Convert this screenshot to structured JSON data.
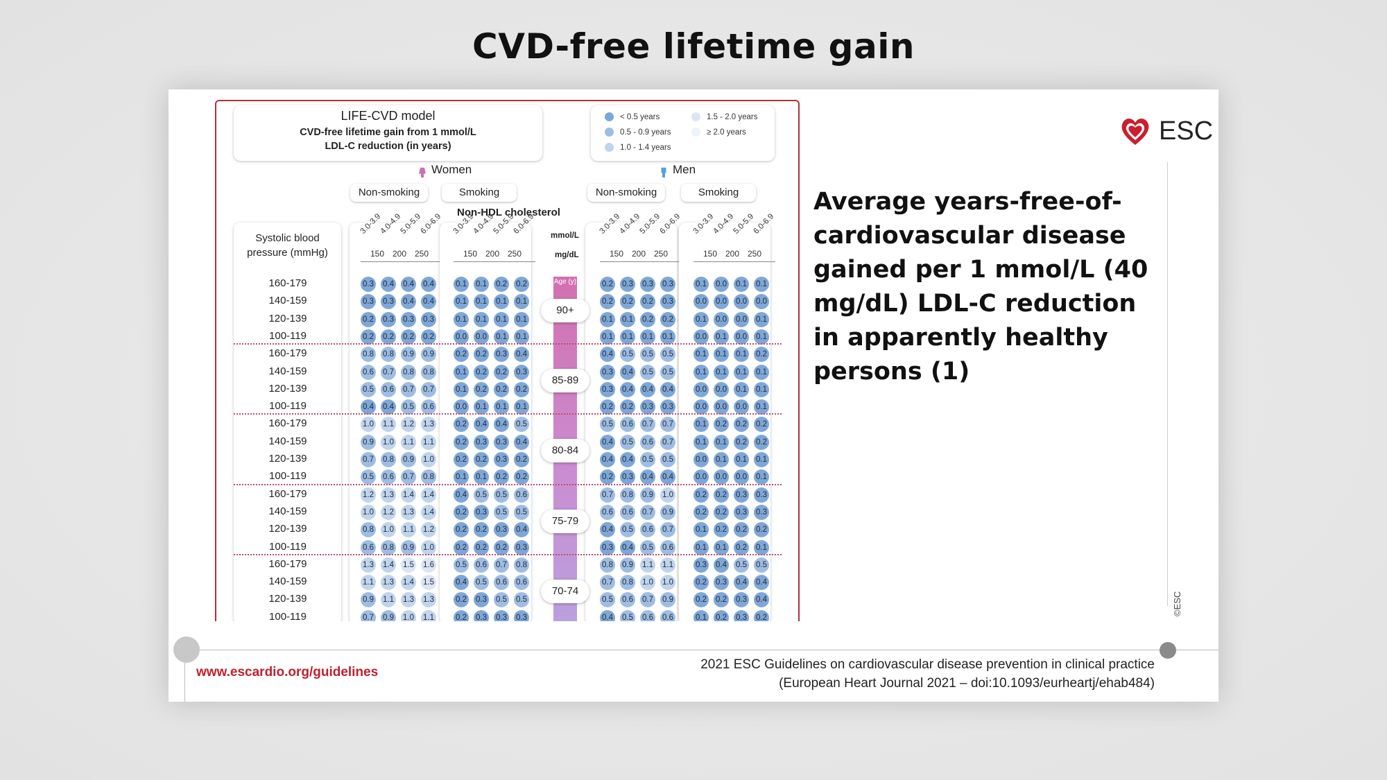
{
  "page_title": "CVD-free lifetime gain",
  "model": {
    "title": "LIFE-CVD model",
    "subtitle_line1": "CVD-free lifetime gain from 1 mmol/L",
    "subtitle_line2": "LDL-C reduction (in years)"
  },
  "legend": {
    "items": [
      {
        "label": "< 0.5 years",
        "color": "#7fa7d6"
      },
      {
        "label": "0.5 - 0.9 years",
        "color": "#9fbde2"
      },
      {
        "label": "1.0 - 1.4 years",
        "color": "#c0d4ec"
      },
      {
        "label": "1.5 - 2.0 years",
        "color": "#dbe5f4"
      },
      {
        "label": "≥ 2.0 years",
        "color": "#eef2f9"
      }
    ]
  },
  "sexes": {
    "women": "Women",
    "men": "Men"
  },
  "smoking": {
    "non": "Non-smoking",
    "yes": "Smoking"
  },
  "nonhdl_label": "Non-HDL cholesterol",
  "sbp_title_line1": "Systolic blood",
  "sbp_title_line2": "pressure (mmHg)",
  "units": {
    "mmol": "mmol/L",
    "mgdl": "mg/dL",
    "age_head": "Age (y)"
  },
  "chol_columns": [
    "3.0-3.9",
    "4.0-4.9",
    "5.0-5.9",
    "6.0-6.9"
  ],
  "mgdl_ticks": [
    "150",
    "200",
    "250"
  ],
  "sbp_rows": [
    "160-179",
    "140-159",
    "120-139",
    "100-119"
  ],
  "age_groups": [
    {
      "label": "90+",
      "women_non": [
        [
          0.3,
          0.4,
          0.4,
          0.4
        ],
        [
          0.3,
          0.3,
          0.4,
          0.4
        ],
        [
          0.2,
          0.3,
          0.3,
          0.3
        ],
        [
          0.2,
          0.2,
          0.2,
          0.2
        ]
      ],
      "women_smk": [
        [
          0.1,
          0.1,
          0.2,
          0.2
        ],
        [
          0.1,
          0.1,
          0.1,
          0.1
        ],
        [
          0.1,
          0.1,
          0.1,
          0.1
        ],
        [
          0.0,
          0.0,
          0.1,
          0.1
        ]
      ],
      "men_non": [
        [
          0.2,
          0.3,
          0.3,
          0.3
        ],
        [
          0.2,
          0.2,
          0.2,
          0.3
        ],
        [
          0.1,
          0.1,
          0.2,
          0.2
        ],
        [
          0.1,
          0.1,
          0.1,
          0.1
        ]
      ],
      "men_smk": [
        [
          0.1,
          0.0,
          0.1,
          0.1
        ],
        [
          0.0,
          0.0,
          0.0,
          0.0
        ],
        [
          0.1,
          0.0,
          0.0,
          0.1
        ],
        [
          0.0,
          0.1,
          0.0,
          0.1
        ]
      ]
    },
    {
      "label": "85-89",
      "women_non": [
        [
          0.8,
          0.8,
          0.9,
          0.9
        ],
        [
          0.6,
          0.7,
          0.8,
          0.8
        ],
        [
          0.5,
          0.6,
          0.7,
          0.7
        ],
        [
          0.4,
          0.4,
          0.5,
          0.6
        ]
      ],
      "women_smk": [
        [
          0.2,
          0.2,
          0.3,
          0.4
        ],
        [
          0.1,
          0.2,
          0.2,
          0.3
        ],
        [
          0.1,
          0.2,
          0.2,
          0.2
        ],
        [
          0.0,
          0.1,
          0.1,
          0.1
        ]
      ],
      "men_non": [
        [
          0.4,
          0.5,
          0.5,
          0.5
        ],
        [
          0.3,
          0.4,
          0.5,
          0.5
        ],
        [
          0.3,
          0.4,
          0.4,
          0.4
        ],
        [
          0.2,
          0.2,
          0.3,
          0.3
        ]
      ],
      "men_smk": [
        [
          0.1,
          0.1,
          0.1,
          0.2
        ],
        [
          0.1,
          0.1,
          0.1,
          0.1
        ],
        [
          0.0,
          0.0,
          0.1,
          0.1
        ],
        [
          0.0,
          0.0,
          0.0,
          0.1
        ]
      ]
    },
    {
      "label": "80-84",
      "women_non": [
        [
          1.0,
          1.1,
          1.2,
          1.3
        ],
        [
          0.9,
          1.0,
          1.1,
          1.1
        ],
        [
          0.7,
          0.8,
          0.9,
          1.0
        ],
        [
          0.5,
          0.6,
          0.7,
          0.8
        ]
      ],
      "women_smk": [
        [
          0.2,
          0.4,
          0.4,
          0.5
        ],
        [
          0.2,
          0.3,
          0.3,
          0.4
        ],
        [
          0.2,
          0.2,
          0.3,
          0.2
        ],
        [
          0.1,
          0.1,
          0.2,
          0.2
        ]
      ],
      "men_non": [
        [
          0.5,
          0.6,
          0.7,
          0.7
        ],
        [
          0.4,
          0.5,
          0.6,
          0.7
        ],
        [
          0.4,
          0.4,
          0.5,
          0.5
        ],
        [
          0.2,
          0.3,
          0.4,
          0.4
        ]
      ],
      "men_smk": [
        [
          0.1,
          0.2,
          0.2,
          0.2
        ],
        [
          0.1,
          0.1,
          0.2,
          0.2
        ],
        [
          0.0,
          0.1,
          0.1,
          0.1
        ],
        [
          0.0,
          0.0,
          0.0,
          0.1
        ]
      ]
    },
    {
      "label": "75-79",
      "women_non": [
        [
          1.2,
          1.3,
          1.4,
          1.4
        ],
        [
          1.0,
          1.2,
          1.3,
          1.4
        ],
        [
          0.8,
          1.0,
          1.1,
          1.2
        ],
        [
          0.6,
          0.8,
          0.9,
          1.0
        ]
      ],
      "women_smk": [
        [
          0.4,
          0.5,
          0.5,
          0.6
        ],
        [
          0.2,
          0.3,
          0.5,
          0.5
        ],
        [
          0.2,
          0.2,
          0.3,
          0.4
        ],
        [
          0.2,
          0.2,
          0.2,
          0.3
        ]
      ],
      "men_non": [
        [
          0.7,
          0.8,
          0.9,
          1.0
        ],
        [
          0.6,
          0.6,
          0.7,
          0.9
        ],
        [
          0.4,
          0.5,
          0.6,
          0.7
        ],
        [
          0.3,
          0.4,
          0.5,
          0.6
        ]
      ],
      "men_smk": [
        [
          0.2,
          0.2,
          0.3,
          0.3
        ],
        [
          0.2,
          0.2,
          0.3,
          0.3
        ],
        [
          0.1,
          0.2,
          0.2,
          0.2
        ],
        [
          0.1,
          0.1,
          0.2,
          0.1
        ]
      ]
    },
    {
      "label": "70-74",
      "women_non": [
        [
          1.3,
          1.4,
          1.5,
          1.6
        ],
        [
          1.1,
          1.3,
          1.4,
          1.5
        ],
        [
          0.9,
          1.1,
          1.3,
          1.3
        ],
        [
          0.7,
          0.9,
          1.0,
          1.1
        ]
      ],
      "women_smk": [
        [
          0.5,
          0.6,
          0.7,
          0.8
        ],
        [
          0.4,
          0.5,
          0.6,
          0.6
        ],
        [
          0.2,
          0.3,
          0.5,
          0.5
        ],
        [
          0.2,
          0.3,
          0.3,
          0.3
        ]
      ],
      "men_non": [
        [
          0.8,
          0.9,
          1.1,
          1.1
        ],
        [
          0.7,
          0.8,
          1.0,
          1.0
        ],
        [
          0.5,
          0.6,
          0.7,
          0.9
        ],
        [
          0.4,
          0.5,
          0.6,
          0.6
        ]
      ],
      "men_smk": [
        [
          0.3,
          0.4,
          0.5,
          0.5
        ],
        [
          0.2,
          0.3,
          0.4,
          0.4
        ],
        [
          0.2,
          0.2,
          0.3,
          0.4
        ],
        [
          0.1,
          0.2,
          0.3,
          0.2
        ]
      ]
    }
  ],
  "side_text": "Average years-free-of-cardiovascular disease gained per 1 mmol/L (40 mg/dL) LDL-C reduction in apparently healthy persons (1)",
  "esc_logo_text": "ESC",
  "copyright": "©ESC",
  "footer": {
    "url": "www.escardio.org/guidelines",
    "ref_line1": "2021 ESC Guidelines on cardiovascular disease prevention in clinical practice",
    "ref_line2": "(European Heart Journal 2021 – doi:10.1093/eurheartj/ehab484)"
  }
}
